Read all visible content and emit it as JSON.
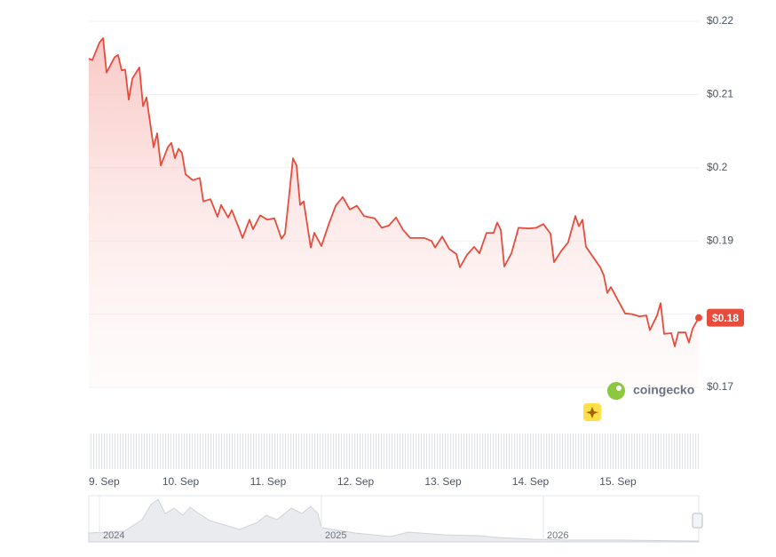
{
  "chart_data": {
    "type": "line",
    "series": [
      {
        "color": "#e74c3c",
        "x": [
          8.949,
          8.99,
          9.071,
          9.112,
          9.152,
          9.244,
          9.284,
          9.325,
          9.365,
          9.406,
          9.447,
          9.528,
          9.569,
          9.609,
          9.69,
          9.731,
          9.772,
          9.853,
          9.893,
          9.934,
          9.975,
          10.015,
          10.056,
          10.137,
          10.218,
          10.259,
          10.34,
          10.421,
          10.462,
          10.543,
          10.584,
          10.665,
          10.706,
          10.787,
          10.827,
          10.909,
          10.99,
          11.071,
          11.152,
          11.193,
          11.234,
          11.284,
          11.325,
          11.365,
          11.406,
          11.487,
          11.528,
          11.609,
          11.69,
          11.772,
          11.853,
          11.934,
          12.015,
          12.096,
          12.218,
          12.299,
          12.381,
          12.462,
          12.543,
          12.624,
          12.706,
          12.787,
          12.868,
          12.909,
          12.99,
          13.071,
          13.152,
          13.193,
          13.274,
          13.355,
          13.416,
          13.497,
          13.579,
          13.619,
          13.66,
          13.701,
          13.782,
          13.863,
          13.985,
          14.066,
          14.147,
          14.228,
          14.269,
          14.35,
          14.431,
          14.513,
          14.553,
          14.594,
          14.635,
          14.716,
          14.797,
          14.838,
          14.878,
          14.919,
          15.0,
          15.081,
          15.162,
          15.244,
          15.325,
          15.365,
          15.447,
          15.487,
          15.528,
          15.609,
          15.65,
          15.69,
          15.772,
          15.812,
          15.853,
          15.924
        ],
        "values": [
          0.2149,
          0.2147,
          0.2171,
          0.2177,
          0.213,
          0.2151,
          0.2154,
          0.2133,
          0.2134,
          0.2093,
          0.2122,
          0.2137,
          0.2084,
          0.2096,
          0.2028,
          0.2047,
          0.2003,
          0.2028,
          0.2034,
          0.2013,
          0.2026,
          0.202,
          0.1991,
          0.1983,
          0.1986,
          0.1954,
          0.1957,
          0.1933,
          0.1949,
          0.1932,
          0.1942,
          0.1918,
          0.1904,
          0.1929,
          0.1916,
          0.1935,
          0.1929,
          0.1931,
          0.1903,
          0.191,
          0.1956,
          0.2013,
          0.2003,
          0.1949,
          0.1954,
          0.1891,
          0.1911,
          0.1893,
          0.1922,
          0.1948,
          0.196,
          0.1943,
          0.1948,
          0.1934,
          0.1931,
          0.1918,
          0.1921,
          0.1932,
          0.1915,
          0.1904,
          0.1904,
          0.1904,
          0.19,
          0.1891,
          0.1906,
          0.1889,
          0.1882,
          0.1864,
          0.1881,
          0.1892,
          0.1883,
          0.1911,
          0.1911,
          0.1925,
          0.1915,
          0.1865,
          0.1883,
          0.1918,
          0.1917,
          0.1918,
          0.1923,
          0.191,
          0.1871,
          0.1886,
          0.1898,
          0.1934,
          0.192,
          0.1929,
          0.1892,
          0.1878,
          0.1864,
          0.1853,
          0.1829,
          0.1837,
          0.1819,
          0.1801,
          0.18,
          0.1797,
          0.1798,
          0.1778,
          0.1798,
          0.1815,
          0.1773,
          0.1774,
          0.1756,
          0.1775,
          0.1775,
          0.1761,
          0.178,
          0.1795
        ]
      }
    ],
    "xlim": [
      8.949,
      15.924
    ],
    "xticks": [
      {
        "value": 9,
        "label": "9. Sep"
      },
      {
        "value": 10,
        "label": "10. Sep"
      },
      {
        "value": 11,
        "label": "11. Sep"
      },
      {
        "value": 12,
        "label": "12. Sep"
      },
      {
        "value": 13,
        "label": "13. Sep"
      },
      {
        "value": 14,
        "label": "14. Sep"
      },
      {
        "value": 15,
        "label": "15. Sep"
      }
    ],
    "ylim": [
      0.17,
      0.22
    ],
    "yticks": [
      {
        "value": 0.17,
        "label": "$0.17"
      },
      {
        "value": 0.19,
        "label": "$0.19"
      },
      {
        "value": 0.2,
        "label": "$0.2"
      },
      {
        "value": 0.21,
        "label": "$0.21"
      },
      {
        "value": 0.22,
        "label": "$0.22"
      }
    ],
    "grid": true,
    "current_price": {
      "value": 0.18,
      "label": "$0.18"
    },
    "watermark": "coingecko",
    "navigator_labels": [
      "2024",
      "2025",
      "2026"
    ]
  }
}
